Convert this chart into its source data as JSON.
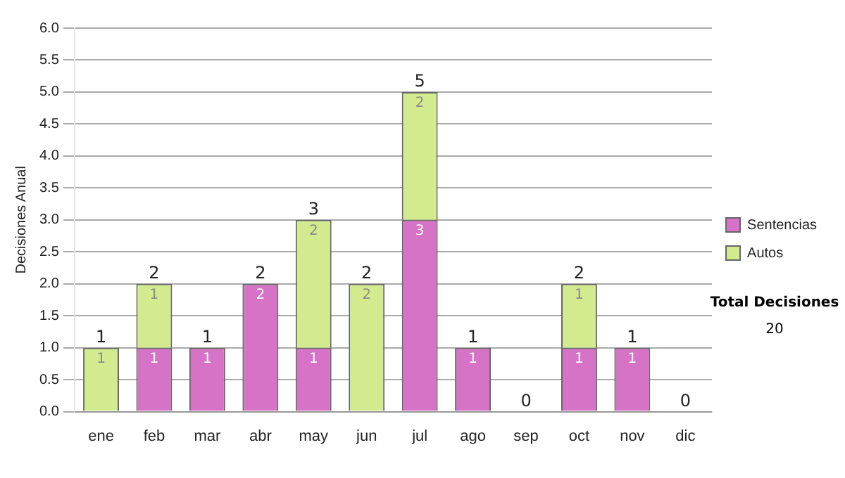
{
  "chart_data": {
    "type": "bar",
    "stacked": true,
    "ylabel": "Decisiones Anual",
    "categories": [
      "ene",
      "feb",
      "mar",
      "abr",
      "may",
      "jun",
      "jul",
      "ago",
      "sep",
      "oct",
      "nov",
      "dic"
    ],
    "series": [
      {
        "name": "Sentencias",
        "color": "#d673c6",
        "values": [
          0,
          1,
          1,
          2,
          1,
          0,
          3,
          1,
          0,
          1,
          1,
          0
        ],
        "value_labels": [
          null,
          "1",
          "1",
          "2",
          "1",
          null,
          "3",
          "1",
          null,
          "1",
          "1",
          null
        ]
      },
      {
        "name": "Autos",
        "color": "#d4ea8e",
        "values": [
          1,
          1,
          0,
          0,
          2,
          2,
          2,
          0,
          0,
          1,
          0,
          0
        ],
        "value_labels": [
          "1",
          "1",
          null,
          null,
          "2",
          "2",
          "2",
          null,
          null,
          "1",
          null,
          null
        ]
      }
    ],
    "totals": [
      "1",
      "2",
      "1",
      "2",
      "3",
      "2",
      "5",
      "1",
      "0",
      "2",
      "1",
      "0"
    ],
    "ylim": [
      0,
      6
    ],
    "yticks": [
      {
        "value": 0,
        "label": "0.0"
      },
      {
        "value": 0.5,
        "label": "0.5"
      },
      {
        "value": 1,
        "label": "1.0"
      },
      {
        "value": 1.5,
        "label": "1.5"
      },
      {
        "value": 2,
        "label": "2.0"
      },
      {
        "value": 2.5,
        "label": "2.5"
      },
      {
        "value": 3,
        "label": "3.0"
      },
      {
        "value": 3.5,
        "label": "3.5"
      },
      {
        "value": 4,
        "label": "4.0"
      },
      {
        "value": 4.5,
        "label": "4.5"
      },
      {
        "value": 5,
        "label": "5.0"
      },
      {
        "value": 5.5,
        "label": "5.5"
      },
      {
        "value": 6,
        "label": "6.0"
      }
    ],
    "grid": "y",
    "legend": "right",
    "annotations": [
      "Total Decisiones",
      "20"
    ]
  }
}
